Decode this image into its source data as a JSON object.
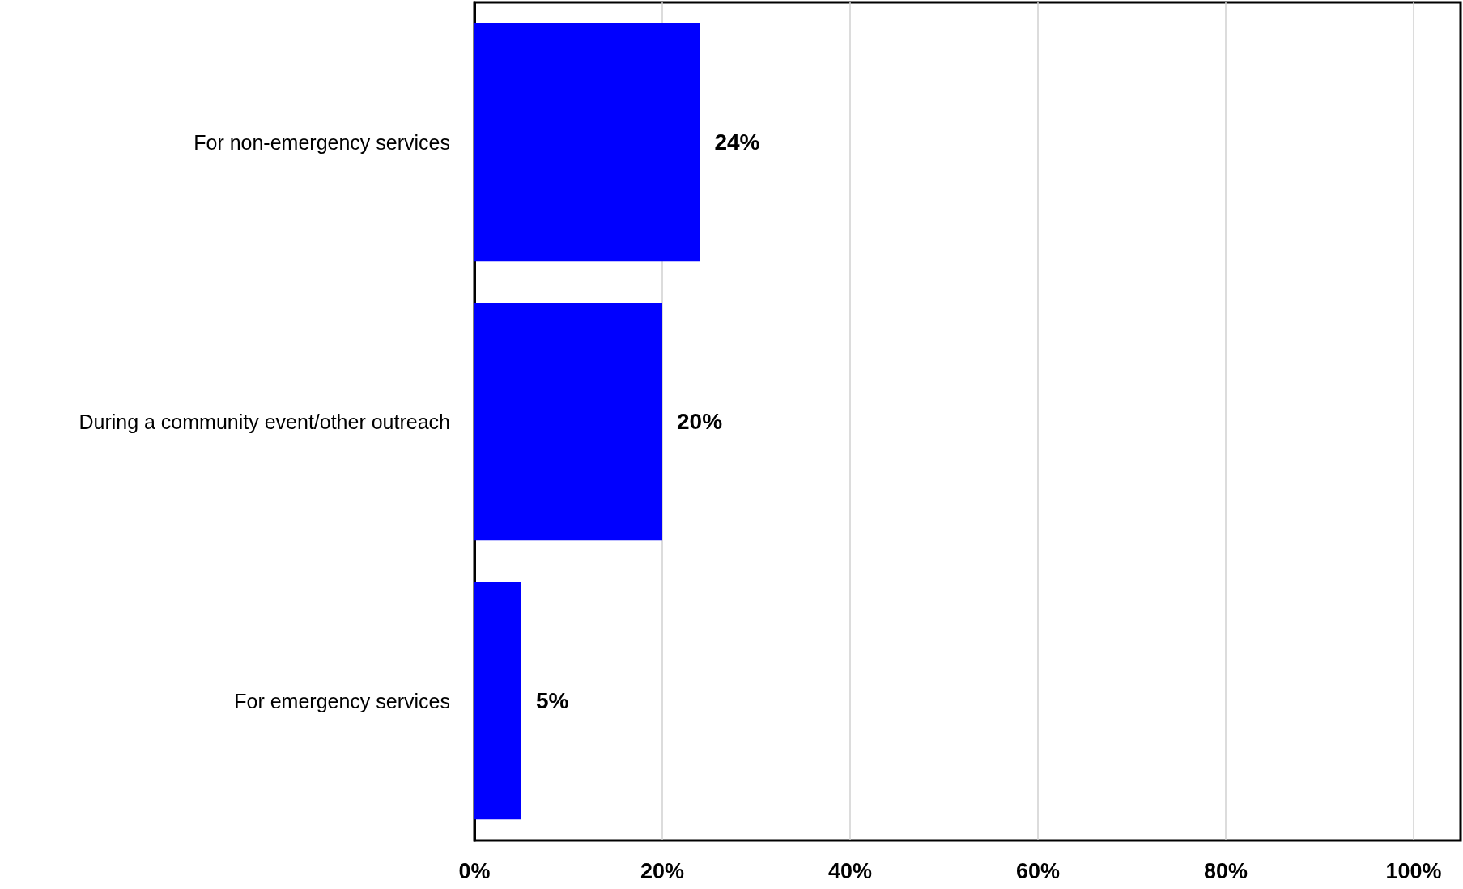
{
  "chart_data": {
    "type": "bar",
    "orientation": "horizontal",
    "categories": [
      "For non-emergency services",
      "During a community event/other outreach",
      "For emergency services"
    ],
    "values": [
      24,
      20,
      5
    ],
    "color": "#0000ff",
    "value_labels": [
      "24%",
      "20%",
      "5%"
    ],
    "xlim": [
      0,
      105
    ],
    "xticks": [
      {
        "value": 0,
        "label": "0%"
      },
      {
        "value": 20,
        "label": "20%"
      },
      {
        "value": 40,
        "label": "40%"
      },
      {
        "value": 60,
        "label": "60%"
      },
      {
        "value": 80,
        "label": "80%"
      },
      {
        "value": 100,
        "label": "100%"
      }
    ],
    "grid": "x"
  }
}
